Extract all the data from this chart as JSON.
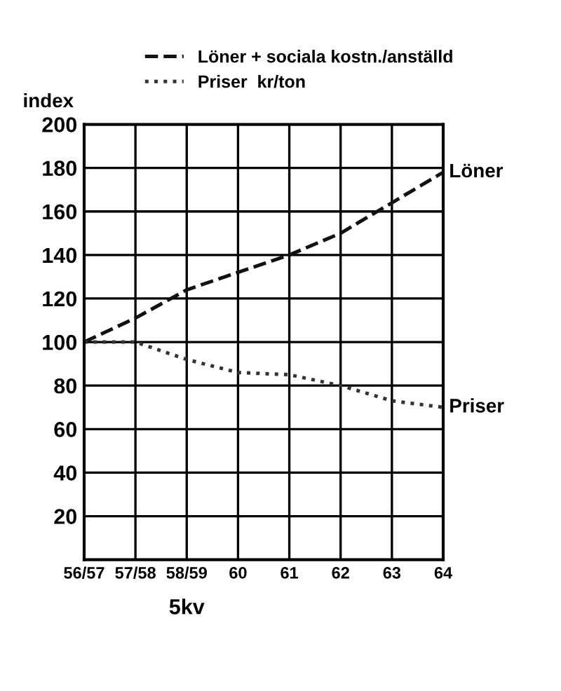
{
  "chart_data": {
    "type": "line",
    "ylabel": "index",
    "categories": [
      "56/57",
      "57/58",
      "58/59",
      "60",
      "61",
      "62",
      "63",
      "64"
    ],
    "series": [
      {
        "name": "Löner + sociala kostn./anställd",
        "color": "#111111",
        "line_style": "dashed",
        "values": [
          100,
          111,
          124,
          132,
          140,
          150,
          164,
          178
        ]
      },
      {
        "name": "Priser  kr/ton",
        "color": "#333333",
        "line_style": "dotted",
        "values": [
          100,
          100,
          92,
          86,
          85,
          80,
          73,
          70
        ]
      }
    ],
    "annotations": [
      {
        "text": "Löner",
        "x": "64",
        "y": 178
      },
      {
        "text": "Priser",
        "x": "64",
        "y": 70
      },
      "5kv"
    ],
    "ylim": [
      0,
      200
    ],
    "yticks": [
      {
        "value": 0,
        "label": null
      },
      20,
      40,
      60,
      80,
      100,
      120,
      140,
      160,
      180,
      200
    ],
    "grid": true,
    "legend": "top",
    "marker": "none"
  }
}
